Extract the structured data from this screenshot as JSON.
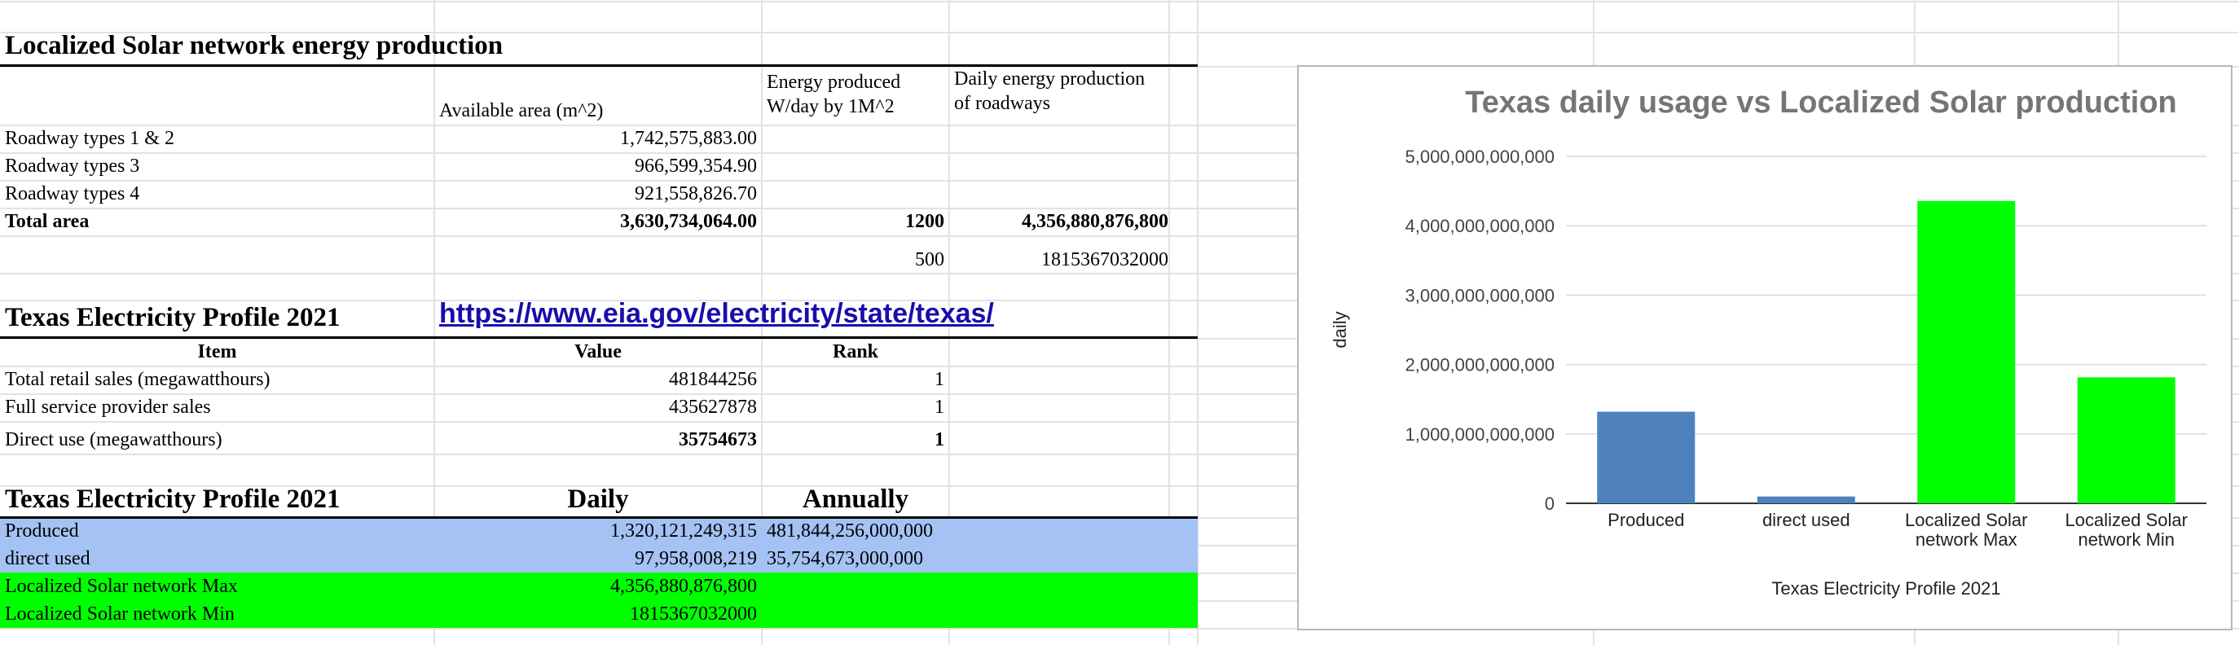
{
  "solar_section": {
    "title": "Localized Solar network energy production",
    "headers": {
      "area": "Available area (m^2)",
      "energy": "Energy produced W/day by 1M^2",
      "daily": "Daily energy production of roadways"
    },
    "rows": [
      {
        "label": "Roadway types 1 & 2",
        "area": "1,742,575,883.00"
      },
      {
        "label": "Roadway types 3",
        "area": "966,599,354.90"
      },
      {
        "label": "Roadway types 4",
        "area": "921,558,826.70"
      }
    ],
    "total": {
      "label": "Total area",
      "area": "3,630,734,064.00",
      "energy": "1200",
      "daily": "4,356,880,876,800"
    },
    "alt": {
      "energy": "500",
      "daily": "1815367032000"
    }
  },
  "profile_section": {
    "title": "Texas Electricity Profile 2021",
    "link": "https://www.eia.gov/electricity/state/texas/",
    "headers": {
      "item": "Item",
      "value": "Value",
      "rank": "Rank"
    },
    "rows": [
      {
        "item": "Total retail sales (megawatthours)",
        "value": "481844256",
        "rank": "1"
      },
      {
        "item": "Full service provider sales",
        "value": "435627878",
        "rank": "1"
      },
      {
        "item": "Direct use (megawatthours)",
        "value": "35754673",
        "rank": "1"
      }
    ]
  },
  "comparison_section": {
    "title": "Texas Electricity Profile 2021",
    "headers": {
      "daily": "Daily",
      "annually": "Annually"
    },
    "rows": [
      {
        "label": "Produced",
        "daily": "1,320,121,249,315",
        "annually": "481,844,256,000,000"
      },
      {
        "label": "direct used",
        "daily": "97,958,008,219",
        "annually": "35,754,673,000,000"
      },
      {
        "label": "Localized Solar network Max",
        "daily": "4,356,880,876,800",
        "annually": ""
      },
      {
        "label": "Localized Solar network Min",
        "daily": "1815367032000",
        "annually": ""
      }
    ],
    "colors": {
      "blue_band": "#a4c2f4",
      "green_band": "#00ff00"
    }
  },
  "chart_data": {
    "type": "bar",
    "title": "Texas daily usage vs Localized Solar production",
    "xlabel": "Texas Electricity Profile 2021",
    "ylabel": "daily",
    "categories": [
      "Produced",
      "direct used",
      "Localized Solar network Max",
      "Localized Solar network Min"
    ],
    "category_lines": [
      [
        "Produced"
      ],
      [
        "direct used"
      ],
      [
        "Localized Solar",
        "network Max"
      ],
      [
        "Localized Solar",
        "network Min"
      ]
    ],
    "values": [
      1320121249315,
      97958008219,
      4356880876800,
      1815367032000
    ],
    "colors": [
      "#4f81bd",
      "#4f81bd",
      "#00ff00",
      "#00ff00"
    ],
    "ylim": [
      0,
      5000000000000
    ],
    "yticks": [
      {
        "value": 0,
        "label": "0"
      },
      {
        "value": 1000000000000,
        "label": "1,000,000,000,000"
      },
      {
        "value": 2000000000000,
        "label": "2,000,000,000,000"
      },
      {
        "value": 3000000000000,
        "label": "3,000,000,000,000"
      },
      {
        "value": 4000000000000,
        "label": "4,000,000,000,000"
      },
      {
        "value": 5000000000000,
        "label": "5,000,000,000,000"
      }
    ],
    "grid": true,
    "legend": "none"
  }
}
